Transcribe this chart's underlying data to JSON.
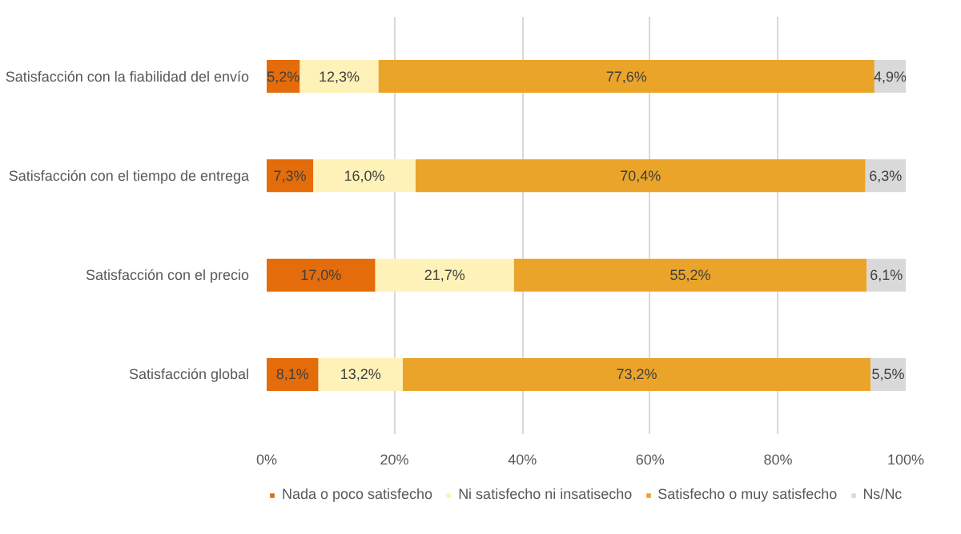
{
  "chart_data": {
    "type": "bar",
    "orientation": "horizontal",
    "stacked": true,
    "categories": [
      "Satisfacción con la fiabilidad del envío",
      "Satisfacción con el tiempo de entrega",
      "Satisfacción con el precio",
      "Satisfacción global"
    ],
    "series": [
      {
        "name": "Nada o poco satisfecho",
        "color": "#e46c0a",
        "values": [
          5.2,
          7.3,
          17.0,
          8.1
        ],
        "value_labels": [
          "5,2%",
          "7,3%",
          "17,0%",
          "8,1%"
        ]
      },
      {
        "name": "Ni satisfecho ni insatisecho",
        "color": "#fff2b8",
        "values": [
          12.3,
          16.0,
          21.7,
          13.2
        ],
        "value_labels": [
          "12,3%",
          "16,0%",
          "21,7%",
          "13,2%"
        ]
      },
      {
        "name": "Satisfecho o muy satisfecho",
        "color": "#eba42a",
        "values": [
          77.6,
          70.4,
          55.2,
          73.2
        ],
        "value_labels": [
          "77,6%",
          "70,4%",
          "55,2%",
          "73,2%"
        ]
      },
      {
        "name": "Ns/Nc",
        "color": "#d9d9d9",
        "values": [
          4.9,
          6.3,
          6.1,
          5.5
        ],
        "value_labels": [
          "4,9%",
          "6,3%",
          "6,1%",
          "5,5%"
        ]
      }
    ],
    "xlim": [
      0,
      100
    ],
    "xticks": [
      {
        "value": 0,
        "label": "0%"
      },
      {
        "value": 20,
        "label": "20%"
      },
      {
        "value": 40,
        "label": "40%"
      },
      {
        "value": 60,
        "label": "60%"
      },
      {
        "value": 80,
        "label": "80%"
      },
      {
        "value": 100,
        "label": "100%"
      }
    ],
    "grid": "x",
    "legend": "bottom"
  }
}
